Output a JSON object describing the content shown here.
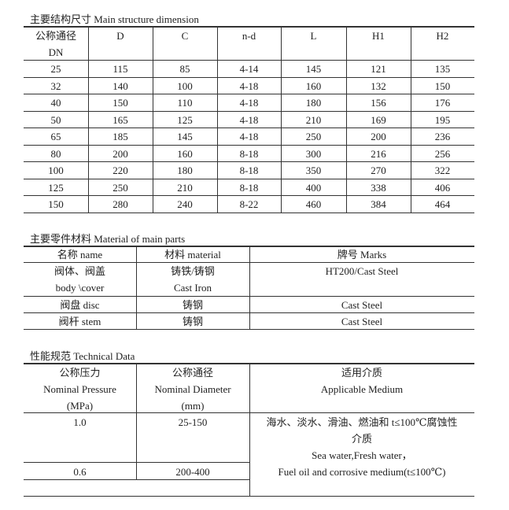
{
  "dimension": {
    "title": "主要结构尺寸    Main structure dimension",
    "headers": [
      "公称通径",
      "D",
      "C",
      "n-d",
      "L",
      "H1",
      "H2"
    ],
    "header_sub": "DN",
    "rows": [
      [
        "25",
        "115",
        "85",
        "4-14",
        "145",
        "121",
        "135"
      ],
      [
        "32",
        "140",
        "100",
        "4-18",
        "160",
        "132",
        "150"
      ],
      [
        "40",
        "150",
        "110",
        "4-18",
        "180",
        "156",
        "176"
      ],
      [
        "50",
        "165",
        "125",
        "4-18",
        "210",
        "169",
        "195"
      ],
      [
        "65",
        "185",
        "145",
        "4-18",
        "250",
        "200",
        "236"
      ],
      [
        "80",
        "200",
        "160",
        "8-18",
        "300",
        "216",
        "256"
      ],
      [
        "100",
        "220",
        "180",
        "8-18",
        "350",
        "270",
        "322"
      ],
      [
        "125",
        "250",
        "210",
        "8-18",
        "400",
        "338",
        "406"
      ],
      [
        "150",
        "280",
        "240",
        "8-22",
        "460",
        "384",
        "464"
      ]
    ]
  },
  "material": {
    "title": "主要零件材料    Material of main parts",
    "headers": [
      "名称  name",
      "材料  material",
      "牌号 Marks"
    ],
    "rows": [
      {
        "name": [
          "阀体、阀盖",
          "body \\cover"
        ],
        "material": [
          "铸铁/铸钢",
          "Cast Iron"
        ],
        "marks": "HT200/Cast Steel"
      },
      {
        "name": [
          "阀盘 disc"
        ],
        "material": [
          "铸钢"
        ],
        "marks": "Cast Steel"
      },
      {
        "name": [
          "阀杆 stem"
        ],
        "material": [
          "铸钢"
        ],
        "marks": "Cast Steel"
      }
    ]
  },
  "technical": {
    "title": "性能规范 Technical Data",
    "headers": [
      [
        "公称压力",
        "Nominal Pressure",
        "(MPa)"
      ],
      [
        "公称通径",
        "Nominal Diameter",
        "(mm)"
      ],
      [
        "适用介质",
        "Applicable Medium"
      ]
    ],
    "rows": [
      {
        "pressure": "1.0",
        "diameter": "25-150"
      },
      {
        "pressure": "0.6",
        "diameter": "200-400"
      }
    ],
    "medium": [
      "海水、淡水、滑油、燃油和 t≤100℃腐蚀性",
      "介质",
      "Sea water,Fresh water，",
      "Fuel oil and corrosive medium(t≤100℃)"
    ]
  }
}
